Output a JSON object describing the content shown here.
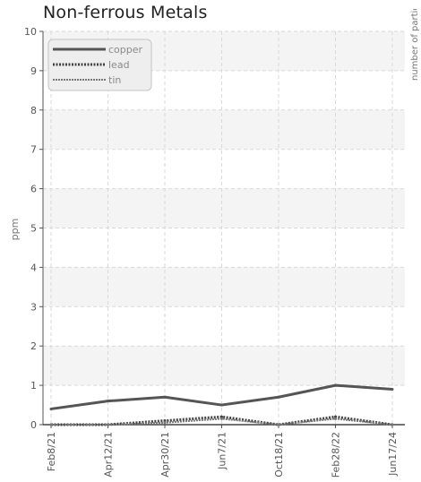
{
  "chart_data": {
    "type": "line",
    "title": "Non-ferrous Metals",
    "ylabel": "ppm",
    "right_axis_label": "number of particle",
    "xlabel": "",
    "categories": [
      "Feb8/21",
      "Apr12/21",
      "Apr30/21",
      "Jun7/21",
      "Oct18/21",
      "Feb28/22",
      "Jun17/24"
    ],
    "ylim": [
      0,
      10
    ],
    "yticks": [
      0,
      1,
      2,
      3,
      4,
      5,
      6,
      7,
      8,
      9,
      10
    ],
    "grid": true,
    "legend_position": "top-left",
    "series": [
      {
        "name": "copper",
        "style": "solid",
        "color": "#555555",
        "values": [
          0.4,
          0.6,
          0.7,
          0.5,
          0.7,
          1.0,
          0.9
        ]
      },
      {
        "name": "lead",
        "style": "dotted",
        "color": "#444444",
        "values": [
          0.0,
          0.0,
          0.1,
          0.2,
          0.0,
          0.2,
          0.0
        ]
      },
      {
        "name": "tin",
        "style": "dashed",
        "color": "#777777",
        "values": [
          0.0,
          0.0,
          0.05,
          0.15,
          0.0,
          0.15,
          0.0
        ]
      }
    ]
  }
}
